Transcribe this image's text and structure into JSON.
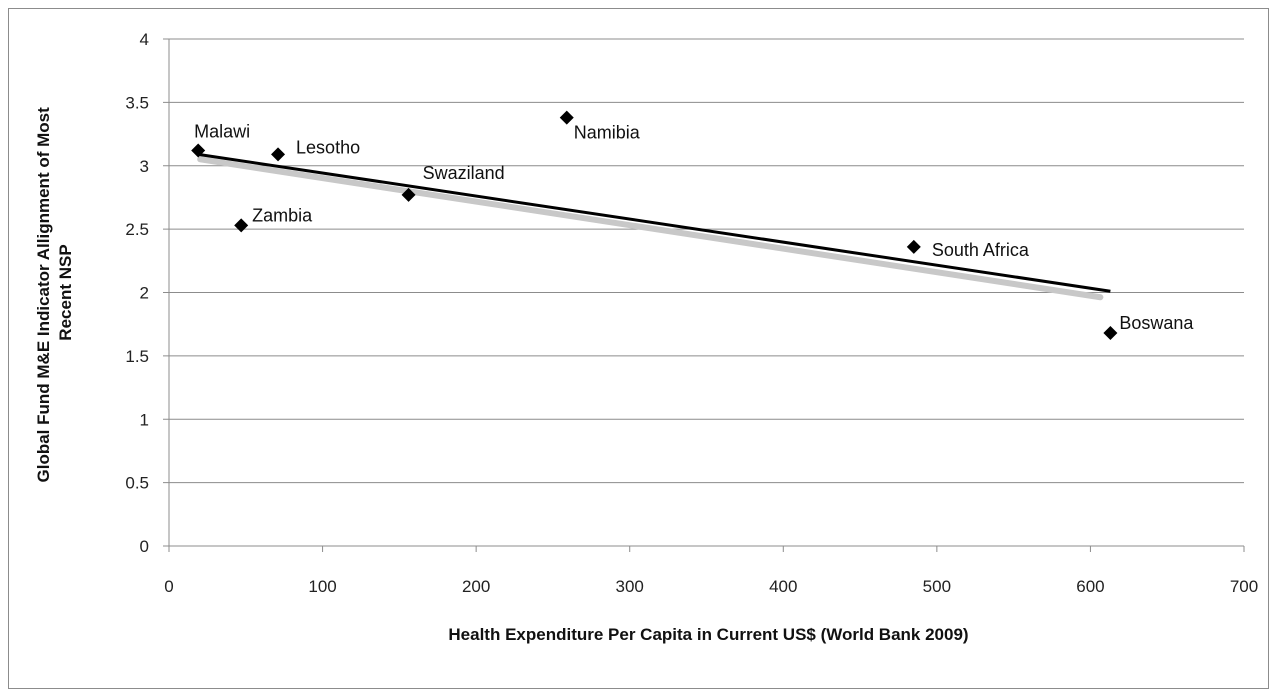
{
  "chart_data": {
    "type": "scatter",
    "title": "",
    "xlabel": "Health Expenditure Per Capita in Current US$ (World Bank 2009)",
    "ylabel_lines": [
      "Global Fund M&E Indicator Allignment of Most",
      "Recent NSP"
    ],
    "xlim": [
      0,
      700
    ],
    "ylim": [
      0,
      4
    ],
    "xticks": [
      0,
      100,
      200,
      300,
      400,
      500,
      600,
      700
    ],
    "yticks": [
      0,
      0.5,
      1,
      1.5,
      2,
      2.5,
      3,
      3.5,
      4
    ],
    "xtick_labels": [
      "0",
      "100",
      "200",
      "300",
      "400",
      "500",
      "600",
      "700"
    ],
    "ytick_labels": [
      "0",
      "0.5",
      "1",
      "1.5",
      "2",
      "2.5",
      "3",
      "3.5",
      "4"
    ],
    "grid": true,
    "legend": "none",
    "marker": "diamond",
    "marker_color": "#000000",
    "points": [
      {
        "label": "Malawi",
        "x": 19,
        "y": 3.12
      },
      {
        "label": "Lesotho",
        "x": 71,
        "y": 3.09
      },
      {
        "label": "Zambia",
        "x": 47,
        "y": 2.53
      },
      {
        "label": "Swaziland",
        "x": 156,
        "y": 2.77
      },
      {
        "label": "Namibia",
        "x": 259,
        "y": 3.38
      },
      {
        "label": "South Africa",
        "x": 485,
        "y": 2.36
      },
      {
        "label": "Boswana",
        "x": 613,
        "y": 1.68
      }
    ],
    "trendline": {
      "type": "linear",
      "x": [
        19,
        613
      ],
      "y": [
        3.09,
        2.01
      ]
    }
  }
}
